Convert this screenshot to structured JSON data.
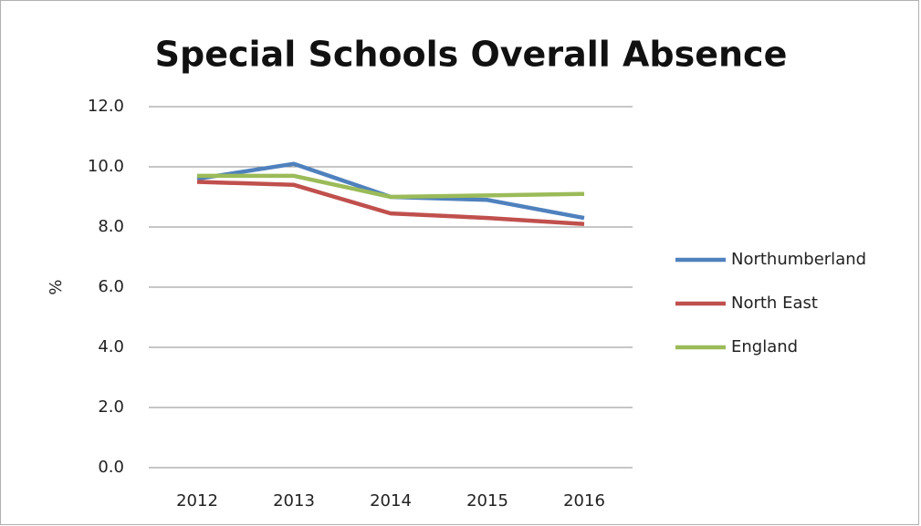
{
  "chart_data": {
    "type": "line",
    "title": "Special Schools Overall Absence",
    "y_label": "%",
    "categories": [
      "2012",
      "2013",
      "2014",
      "2015",
      "2016"
    ],
    "series": [
      {
        "name": "Northumberland",
        "color": "#4f81bd",
        "values": [
          9.6,
          10.1,
          9.0,
          8.9,
          8.3
        ]
      },
      {
        "name": "North East",
        "color": "#c0504d",
        "values": [
          9.5,
          9.4,
          8.45,
          8.3,
          8.1
        ]
      },
      {
        "name": "England",
        "color": "#9bbb59",
        "values": [
          9.7,
          9.7,
          9.0,
          9.05,
          9.1
        ]
      }
    ],
    "ylim": [
      0,
      12
    ],
    "yticks": [
      {
        "value": 0,
        "label": "0.0"
      },
      {
        "value": 2,
        "label": "2.0"
      },
      {
        "value": 4,
        "label": "4.0"
      },
      {
        "value": 6,
        "label": "6.0"
      },
      {
        "value": 8,
        "label": "8.0"
      },
      {
        "value": 10,
        "label": "10.0"
      },
      {
        "value": 12,
        "label": "12.0"
      }
    ],
    "grid": true,
    "legend": "right"
  }
}
